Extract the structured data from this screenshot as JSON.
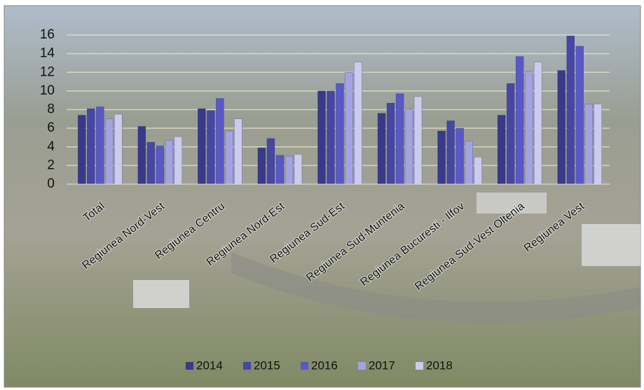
{
  "chart_data": {
    "type": "bar",
    "categories": [
      "Total",
      "Regiunea Nord-Vest",
      "Regiunea Centru",
      "Regiunea Nord-Est",
      "Regiunea Sud-Est",
      "Regiunea Sud-Muntenia",
      "Regiunea Bucuresti - Ilfov",
      "Regiunea Sud-Vest Oltenia",
      "Regiunea Vest"
    ],
    "series": [
      {
        "name": "2014",
        "color": "#39398a",
        "values": [
          7.4,
          6.2,
          8.1,
          3.9,
          10.0,
          7.6,
          5.7,
          7.4,
          12.2
        ]
      },
      {
        "name": "2015",
        "color": "#4646a6",
        "values": [
          8.1,
          4.5,
          7.9,
          4.9,
          10.0,
          8.7,
          6.8,
          10.8,
          15.9
        ]
      },
      {
        "name": "2016",
        "color": "#5858c6",
        "values": [
          8.3,
          4.1,
          9.2,
          3.1,
          10.8,
          9.7,
          6.0,
          13.7,
          14.8
        ]
      },
      {
        "name": "2017",
        "color": "#a3a3e2",
        "values": [
          7.0,
          4.7,
          5.7,
          3.0,
          12.0,
          8.1,
          4.6,
          12.1,
          8.6
        ]
      },
      {
        "name": "2018",
        "color": "#cbcbef",
        "values": [
          7.5,
          5.1,
          7.0,
          3.2,
          13.1,
          9.4,
          2.9,
          13.1,
          8.6
        ]
      }
    ],
    "ylim": [
      0,
      16
    ],
    "yticks": [
      0,
      2,
      4,
      6,
      8,
      10,
      12,
      14,
      16
    ],
    "grid": true,
    "legend": "bottom"
  }
}
